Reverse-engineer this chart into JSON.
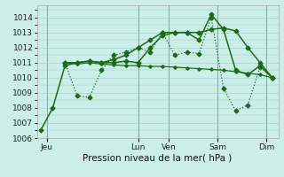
{
  "background_color": "#cceee8",
  "grid_color": "#99cccc",
  "line_color": "#1a6b1a",
  "title": "Pression niveau de la mer( hPa )",
  "ylim": [
    1006,
    1014.8
  ],
  "yticks": [
    1006,
    1007,
    1008,
    1009,
    1010,
    1011,
    1012,
    1013,
    1014
  ],
  "xlim": [
    -0.3,
    19.5
  ],
  "day_labels": [
    "Jeu",
    "Lun",
    "Ven",
    "Sam",
    "Dim"
  ],
  "day_positions": [
    0.5,
    8.0,
    10.5,
    14.5,
    18.5
  ],
  "vline_positions": [
    0.5,
    8.0,
    10.5,
    14.5,
    18.5
  ],
  "series1_x": [
    0,
    1,
    2,
    3,
    4,
    5,
    6,
    7,
    8,
    9,
    10,
    11,
    12,
    13,
    14,
    15,
    16,
    17,
    18,
    19
  ],
  "series1_y": [
    1006.5,
    1008.0,
    1010.8,
    1011.0,
    1011.1,
    1011.0,
    1011.0,
    1011.1,
    1011.0,
    1012.0,
    1012.8,
    1013.0,
    1013.0,
    1012.5,
    1014.2,
    1013.2,
    1010.5,
    1010.2,
    1010.8,
    1010.0
  ],
  "series2_x": [
    2,
    3,
    4,
    5,
    6,
    7,
    8,
    9,
    10,
    11,
    12,
    13,
    14,
    15,
    16,
    17,
    18,
    19
  ],
  "series2_y": [
    1011.0,
    1011.0,
    1011.1,
    1011.0,
    1011.2,
    1011.5,
    1012.0,
    1012.5,
    1013.0,
    1013.0,
    1013.0,
    1013.0,
    1013.2,
    1013.3,
    1013.1,
    1012.0,
    1011.0,
    1010.0
  ],
  "series3_x": [
    2,
    3,
    4,
    5,
    6,
    7,
    8,
    9,
    10,
    11,
    12,
    13,
    14,
    15,
    16,
    17,
    18,
    19
  ],
  "series3_y": [
    1011.0,
    1010.9,
    1011.0,
    1010.9,
    1010.85,
    1010.8,
    1010.8,
    1010.75,
    1010.75,
    1010.7,
    1010.65,
    1010.6,
    1010.55,
    1010.5,
    1010.4,
    1010.3,
    1010.2,
    1010.0
  ],
  "series4_x": [
    2,
    3,
    4,
    5,
    6,
    7,
    8,
    9,
    10,
    11,
    12,
    13,
    14,
    15,
    16,
    17,
    18,
    19
  ],
  "series4_y": [
    1011.0,
    1008.8,
    1008.7,
    1010.5,
    1011.5,
    1011.7,
    1012.0,
    1011.7,
    1013.0,
    1011.5,
    1011.7,
    1011.6,
    1014.0,
    1009.3,
    1007.8,
    1008.2,
    1010.7,
    1010.0
  ]
}
